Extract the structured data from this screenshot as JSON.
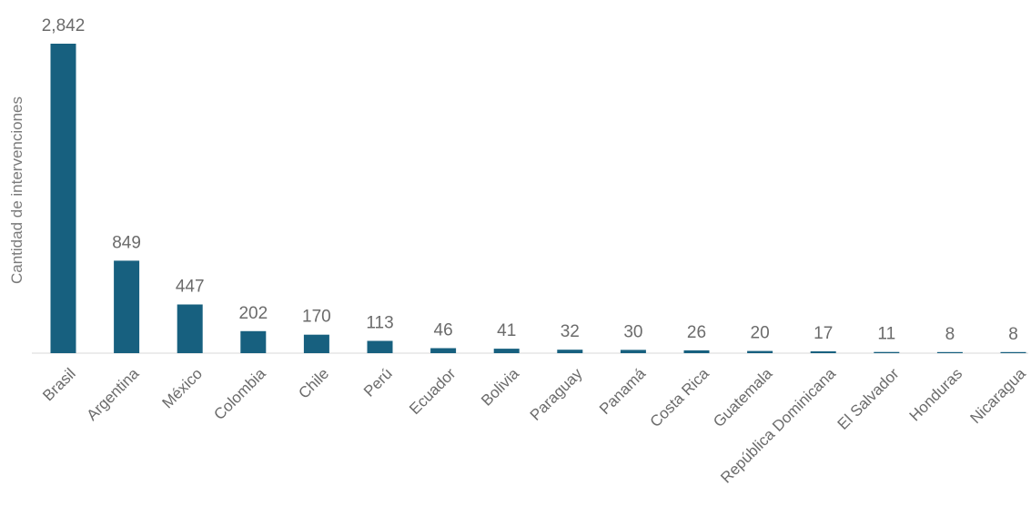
{
  "chart_data": {
    "type": "bar",
    "title": "",
    "xlabel": "",
    "ylabel": "Cantidad de intervenciones",
    "categories": [
      "Brasil",
      "Argentina",
      "México",
      "Colombia",
      "Chile",
      "Perú",
      "Ecuador",
      "Bolivia",
      "Paraguay",
      "Panamá",
      "Costa Rica",
      "Guatemala",
      "República Dominicana",
      "El Salvador",
      "Honduras",
      "Nicaragua"
    ],
    "values": [
      2842,
      849,
      447,
      202,
      170,
      113,
      46,
      41,
      32,
      30,
      26,
      20,
      17,
      11,
      8,
      8
    ],
    "data_labels": [
      "2,842",
      "849",
      "447",
      "202",
      "170",
      "113",
      "46",
      "41",
      "32",
      "30",
      "26",
      "20",
      "17",
      "11",
      "8",
      "8"
    ],
    "ylim": [
      0,
      2842
    ],
    "grid": false,
    "legend": "none",
    "colors": {
      "bar": "#17607f",
      "axis": "#d9d9d9",
      "text": "#6b6b6b"
    }
  }
}
